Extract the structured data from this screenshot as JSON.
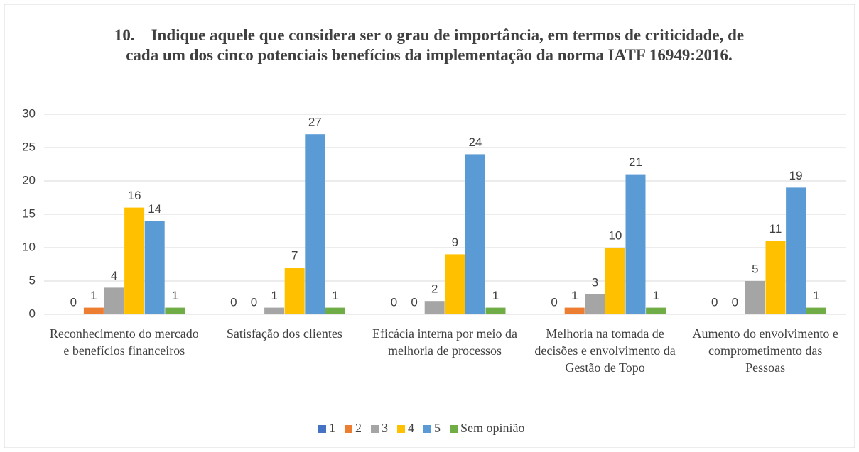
{
  "chart_data": {
    "type": "bar",
    "title": "10.    Indique aquele que considera ser o grau de importância, em termos de criticidade, de cada um dos cinco potenciais benefícios da implementação da norma IATF 16949:2016.",
    "categories": [
      "Reconhecimento do mercado e benefícios financeiros",
      "Satisfação dos clientes",
      "Eficácia interna por meio da melhoria de processos",
      "Melhoria na tomada de decisões e envolvimento da Gestão de Topo",
      "Aumento do envolvimento e comprometimento das Pessoas"
    ],
    "series": [
      {
        "name": "1",
        "color": "#4472c4",
        "values": [
          0,
          0,
          0,
          0,
          0
        ]
      },
      {
        "name": "2",
        "color": "#ed7d31",
        "values": [
          1,
          0,
          0,
          1,
          0
        ]
      },
      {
        "name": "3",
        "color": "#a5a5a5",
        "values": [
          4,
          1,
          2,
          3,
          5
        ]
      },
      {
        "name": "4",
        "color": "#ffc000",
        "values": [
          16,
          7,
          9,
          10,
          11
        ]
      },
      {
        "name": "5",
        "color": "#5b9bd5",
        "values": [
          14,
          27,
          24,
          21,
          19
        ]
      },
      {
        "name": "Sem opinião",
        "color": "#70ad47",
        "values": [
          1,
          1,
          1,
          1,
          1
        ]
      }
    ],
    "ylim": [
      0,
      30
    ],
    "yticks": [
      0,
      5,
      10,
      15,
      20,
      25,
      30
    ],
    "grid": true,
    "legend": "bottom",
    "data_labels": true
  }
}
